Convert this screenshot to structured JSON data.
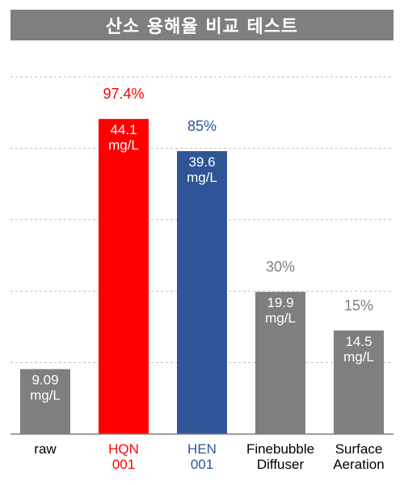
{
  "chart_data": {
    "type": "bar",
    "title": "산소 용해율 비교 테스트",
    "categories": [
      {
        "line1": "raw",
        "line2": ""
      },
      {
        "line1": "HQN",
        "line2": "001"
      },
      {
        "line1": "HEN",
        "line2": "001"
      },
      {
        "line1": "Finebubble",
        "line2": "Diffuser"
      },
      {
        "line1": "Surface",
        "line2": "Aeration"
      }
    ],
    "values": [
      9.09,
      44.1,
      39.6,
      19.9,
      14.5
    ],
    "value_labels": [
      {
        "num": "9.09",
        "unit": "mg/L"
      },
      {
        "num": "44.1",
        "unit": "mg/L"
      },
      {
        "num": "39.6",
        "unit": "mg/L"
      },
      {
        "num": "19.9",
        "unit": "mg/L"
      },
      {
        "num": "14.5",
        "unit": "mg/L"
      }
    ],
    "percent_labels": [
      "",
      "97.4%",
      "85%",
      "30%",
      "15%"
    ],
    "colors": [
      "#7f7f7f",
      "#ff0000",
      "#2f5597",
      "#7f7f7f",
      "#7f7f7f"
    ],
    "label_colors": [
      "#000000",
      "#ff0000",
      "#2f5597",
      "#000000",
      "#000000"
    ],
    "percent_colors": [
      "#ff0000",
      "#ff0000",
      "#2f5597",
      "#7f7f7f",
      "#7f7f7f"
    ],
    "ylim": [
      0,
      50
    ],
    "grid": true,
    "grid_step": 10
  }
}
